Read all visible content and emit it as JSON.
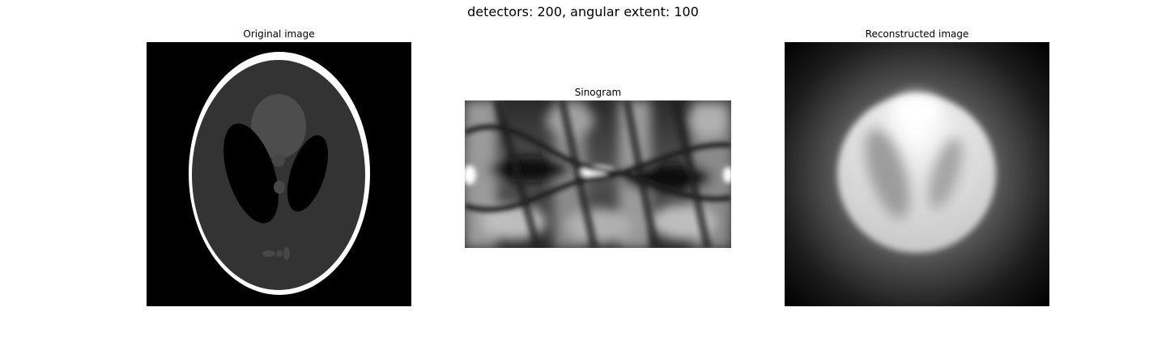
{
  "figure": {
    "suptitle": "detectors: 200, angular extent: 100"
  },
  "panels": [
    {
      "title": "Original image",
      "kind": "shepp-logan-phantom"
    },
    {
      "title": "Sinogram",
      "kind": "radon-sinogram"
    },
    {
      "title": "Reconstructed image",
      "kind": "filtered-backprojection"
    }
  ],
  "colors": {
    "background": "#000000",
    "figure_background": "#ffffff"
  }
}
